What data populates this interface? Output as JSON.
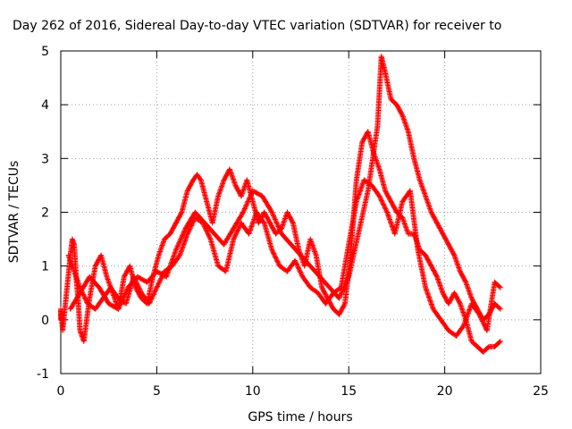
{
  "chart_data": {
    "type": "scatter",
    "title": "Day 262 of 2016, Sidereal Day-to-day VTEC variation (SDTVAR) for receiver to",
    "xlabel": "GPS time / hours",
    "ylabel": "SDTVAR / TECUs",
    "xlim": [
      0,
      25
    ],
    "ylim": [
      -1,
      5
    ],
    "xticks": [
      0,
      5,
      10,
      15,
      20,
      25
    ],
    "yticks": [
      -1,
      0,
      1,
      2,
      3,
      4,
      5
    ],
    "xtick_labels": [
      "0",
      "5",
      "10",
      "15",
      "20",
      "25"
    ],
    "ytick_labels": [
      "-1",
      "0",
      "1",
      "2",
      "3",
      "4",
      "5"
    ],
    "grid": true,
    "marker": "plus",
    "color": "#ff0000",
    "series": [
      {
        "x": [
          0.0,
          0.0,
          0.1,
          0.3,
          0.5,
          0.6,
          0.7,
          0.8,
          0.9,
          1.0,
          1.2,
          1.5,
          1.8,
          2.1,
          2.4,
          2.7,
          3.0,
          3.3,
          3.6,
          3.9,
          4.2,
          4.5,
          4.8,
          5.1,
          5.4,
          5.7,
          6.0,
          6.3,
          6.6,
          6.9,
          7.1,
          7.3,
          7.6,
          7.9,
          8.2,
          8.5,
          8.8,
          9.1,
          9.4,
          9.7,
          10.0,
          10.3,
          10.6,
          10.9,
          11.2,
          11.5,
          11.8,
          12.1,
          12.4,
          12.7,
          13.0,
          13.3,
          13.6,
          13.9,
          14.2,
          14.5,
          14.8,
          15.1,
          15.4,
          15.7,
          16.0,
          16.3,
          16.6,
          16.9,
          17.2,
          17.5,
          17.8,
          18.1,
          18.4,
          18.7,
          19.0,
          19.3,
          19.6,
          19.9,
          20.2,
          20.5,
          20.8,
          21.1,
          21.4,
          21.7,
          22.0,
          22.3,
          22.6,
          22.9
        ],
        "y": [
          0.0,
          0.2,
          -0.2,
          0.5,
          1.2,
          1.5,
          1.4,
          0.8,
          0.4,
          -0.2,
          -0.4,
          0.4,
          1.0,
          1.2,
          0.8,
          0.5,
          0.2,
          0.8,
          1.0,
          0.6,
          0.4,
          0.3,
          0.8,
          1.2,
          1.5,
          1.6,
          1.8,
          2.0,
          2.4,
          2.6,
          2.7,
          2.6,
          2.2,
          1.8,
          2.3,
          2.6,
          2.8,
          2.5,
          2.3,
          2.6,
          2.2,
          1.8,
          2.0,
          1.8,
          1.6,
          1.7,
          2.0,
          1.8,
          1.3,
          1.0,
          1.5,
          1.2,
          0.6,
          0.4,
          0.2,
          0.1,
          0.3,
          1.2,
          2.6,
          3.3,
          3.5,
          3.1,
          2.8,
          2.4,
          2.2,
          2.0,
          1.9,
          1.6,
          1.6,
          1.3,
          1.2,
          1.0,
          0.8,
          0.5,
          0.3,
          0.5,
          0.3,
          0.0,
          -0.4,
          -0.5,
          -0.6,
          -0.5,
          -0.5,
          -0.4
        ]
      },
      {
        "x": [
          0.5,
          1.0,
          1.5,
          2.0,
          2.5,
          3.0,
          3.5,
          4.0,
          4.5,
          5.0,
          5.5,
          6.0,
          6.5,
          7.0,
          7.5,
          8.0,
          8.5,
          9.0,
          9.5,
          10.0,
          10.5,
          11.0,
          11.5,
          12.0,
          12.5,
          13.0,
          13.5,
          14.0,
          14.5,
          15.0,
          15.5,
          16.0,
          16.5,
          16.7,
          16.9,
          17.2,
          17.5,
          17.8,
          18.1,
          18.4,
          18.7,
          19.0,
          19.3,
          19.6,
          19.9,
          20.2,
          20.5,
          20.8,
          21.1,
          21.4,
          21.7,
          22.0,
          22.3,
          22.6,
          22.9
        ],
        "y": [
          0.2,
          0.5,
          0.8,
          0.6,
          0.3,
          0.2,
          0.6,
          0.8,
          0.7,
          0.9,
          0.8,
          1.3,
          1.7,
          2.0,
          1.8,
          1.6,
          1.4,
          1.7,
          2.0,
          2.4,
          2.3,
          2.0,
          1.6,
          1.4,
          1.2,
          1.0,
          0.8,
          0.6,
          0.4,
          0.8,
          1.6,
          2.4,
          3.6,
          4.9,
          4.6,
          4.1,
          4.0,
          3.8,
          3.5,
          3.0,
          2.6,
          2.3,
          2.0,
          1.8,
          1.6,
          1.4,
          1.2,
          0.9,
          0.7,
          0.4,
          0.2,
          0.0,
          0.1,
          0.3,
          0.2
        ]
      },
      {
        "x": [
          0.4,
          0.7,
          1.0,
          1.4,
          1.8,
          2.2,
          2.6,
          3.0,
          3.4,
          3.8,
          4.2,
          4.6,
          5.0,
          5.4,
          5.8,
          6.2,
          6.6,
          7.0,
          7.4,
          7.8,
          8.2,
          8.6,
          9.0,
          9.4,
          9.8,
          10.2,
          10.6,
          11.0,
          11.4,
          11.8,
          12.2,
          12.6,
          13.0,
          13.4,
          13.8,
          14.2,
          14.6,
          15.0,
          15.4,
          15.8,
          16.2,
          16.6,
          17.0,
          17.4,
          17.8,
          18.2,
          18.6,
          19.0,
          19.4,
          19.8,
          20.2,
          20.6,
          21.0,
          21.4,
          21.8,
          22.2,
          22.6,
          22.9
        ],
        "y": [
          1.2,
          0.9,
          0.6,
          0.3,
          0.2,
          0.4,
          0.6,
          0.4,
          0.3,
          0.8,
          0.5,
          0.3,
          0.6,
          0.9,
          1.0,
          1.2,
          1.6,
          1.9,
          1.8,
          1.5,
          1.0,
          0.9,
          1.5,
          1.8,
          1.6,
          2.0,
          1.8,
          1.3,
          1.0,
          0.9,
          1.1,
          0.8,
          0.6,
          0.5,
          0.3,
          0.5,
          0.6,
          1.4,
          2.2,
          2.6,
          2.5,
          2.3,
          2.0,
          1.6,
          2.2,
          2.4,
          1.3,
          0.6,
          0.2,
          0.0,
          -0.2,
          -0.3,
          -0.1,
          0.3,
          0.1,
          -0.2,
          0.7,
          0.6
        ]
      }
    ]
  }
}
